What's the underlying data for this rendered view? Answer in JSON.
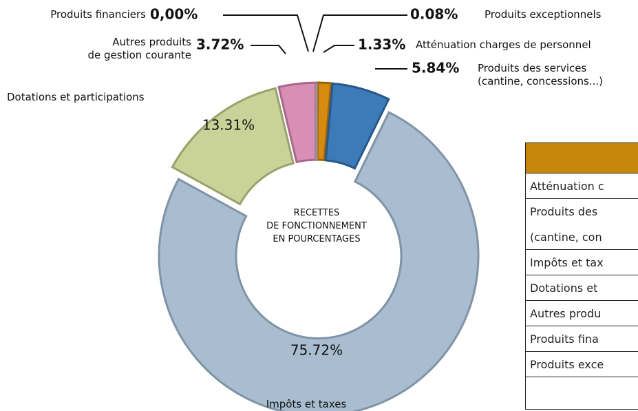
{
  "chart_data": {
    "type": "donut",
    "center_label": "RECETTES\nDE FONCTIONNEMENT\nEN POURCENTAGES",
    "categories": [
      "Produits exceptionnels",
      "Atténuation charges de personnel",
      "Produits des services\n(cantine, concessions...)",
      "Impôts et taxes",
      "Dotations et participations",
      "Autres produits\nde gestion courante",
      "Produits financiers"
    ],
    "values": [
      0.08,
      1.33,
      5.84,
      75.72,
      13.31,
      3.72,
      0
    ],
    "value_labels": [
      "0.08%",
      "1.33%",
      "5.84%",
      "75.72%",
      "13.31%",
      "3.72%",
      "0,00%"
    ],
    "colors": [
      "#c0392b",
      "#d68a10",
      "#3c7bb8",
      "#a8bdd0",
      "#c9d299",
      "#d98fb5",
      "#ffffff"
    ],
    "strokes": [
      "#8a2a20",
      "#9a620a",
      "#28578a",
      "#7f93a6",
      "#9aa16a",
      "#a8668a",
      "#999999"
    ]
  },
  "table": {
    "rows": [
      [
        "Atténuation c"
      ],
      [
        "Produits des",
        "(cantine, con"
      ],
      [
        "Impôts et tax"
      ],
      [
        "Dotations et"
      ],
      [
        "Autres produ"
      ],
      [
        "Produits fina"
      ],
      [
        "Produits exce"
      ],
      []
    ]
  }
}
